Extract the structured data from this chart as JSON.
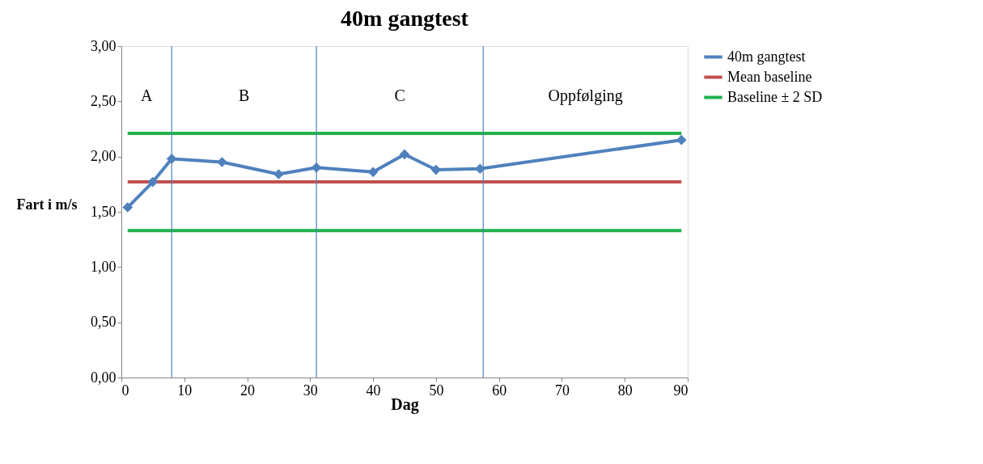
{
  "chart_data": {
    "type": "line",
    "title": "40m gangtest",
    "xlabel": "Dag",
    "ylabel": "Fart i m/s",
    "xlim": [
      0,
      90
    ],
    "xticks": [
      0,
      10,
      20,
      30,
      40,
      50,
      60,
      70,
      80,
      90
    ],
    "ylim": [
      0,
      3
    ],
    "yticks": [
      {
        "value": 0,
        "label": "0,00"
      },
      {
        "value": 0.5,
        "label": "0,50"
      },
      {
        "value": 1,
        "label": "1,00"
      },
      {
        "value": 1.5,
        "label": "1,50"
      },
      {
        "value": 2,
        "label": "2,00"
      },
      {
        "value": 2.5,
        "label": "2,50"
      },
      {
        "value": 3,
        "label": "3,00"
      }
    ],
    "grid": false,
    "legend": "right",
    "series": [
      {
        "name": "40m gangtest",
        "color": "#4f81bd",
        "marker": "diamond",
        "x": [
          1,
          5,
          8,
          16,
          25,
          31,
          40,
          45,
          50,
          57,
          89
        ],
        "values": [
          1.54,
          1.77,
          1.98,
          1.95,
          1.84,
          1.9,
          1.86,
          2.02,
          1.88,
          1.89,
          2.15
        ]
      },
      {
        "name": "Mean baseline",
        "color": "#c0504d",
        "marker": "none",
        "x": [
          1,
          89
        ],
        "values": [
          1.77,
          1.77
        ]
      },
      {
        "name": "Baseline ± 2 SD",
        "color": "#1fb24a",
        "marker": "none",
        "x": [
          1,
          89
        ],
        "values": [
          2.21,
          2.21
        ]
      },
      {
        "color": "#1fb24a",
        "marker": "none",
        "x": [
          1,
          89
        ],
        "values": [
          1.33,
          1.33
        ]
      }
    ],
    "ref_lines": [
      {
        "axis": "x",
        "value": 8,
        "color": "#4f81bd"
      },
      {
        "axis": "x",
        "value": 31,
        "color": "#4f81bd"
      },
      {
        "axis": "x",
        "value": 57.5,
        "color": "#4f81bd"
      }
    ],
    "annotations": [
      "A",
      "B",
      "C",
      "Oppfølging"
    ]
  }
}
